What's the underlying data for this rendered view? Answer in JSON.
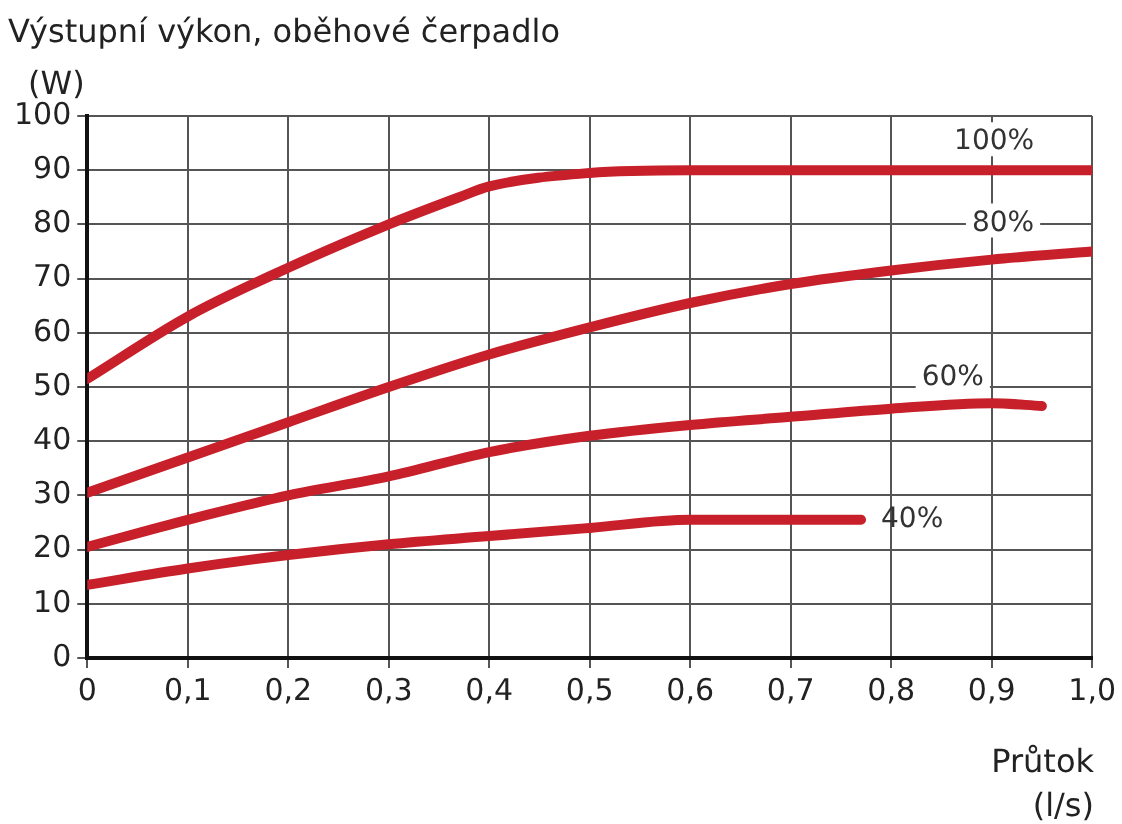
{
  "chart_data": {
    "type": "line",
    "title": "Výstupní výkon, oběhové čerpadlo",
    "ylabel": "(W)",
    "xlabel": "Průtok (l/s)",
    "xlim": [
      0,
      1
    ],
    "ylim": [
      0,
      100
    ],
    "xticks": [
      0,
      {
        "value": 0.1,
        "label": "0,1"
      },
      {
        "value": 0.2,
        "label": "0,2"
      },
      {
        "value": 0.3,
        "label": "0,3"
      },
      {
        "value": 0.4,
        "label": "0,4"
      },
      {
        "value": 0.5,
        "label": "0,5"
      },
      {
        "value": 0.6,
        "label": "0,6"
      },
      {
        "value": 0.7,
        "label": "0,7"
      },
      {
        "value": 0.8,
        "label": "0,8"
      },
      {
        "value": 0.9,
        "label": "0,9"
      },
      {
        "value": 1,
        "label": "1,0"
      }
    ],
    "yticks": [
      0,
      10,
      20,
      30,
      40,
      50,
      60,
      70,
      80,
      90,
      100
    ],
    "grid": true,
    "legend": false,
    "marker": "none",
    "line_style": "solid",
    "series": [
      {
        "name": "100%",
        "color": "#c8202a",
        "x": [
          0,
          0.1,
          0.2,
          0.3,
          0.37,
          0.4,
          0.5,
          0.6,
          0.8,
          1
        ],
        "values": [
          51.5,
          63,
          72,
          80,
          85,
          87,
          89.5,
          90,
          90,
          90
        ]
      },
      {
        "name": "80%",
        "color": "#c8202a",
        "x": [
          0,
          0.1,
          0.2,
          0.3,
          0.4,
          0.5,
          0.6,
          0.7,
          0.8,
          0.9,
          1
        ],
        "values": [
          30.5,
          37,
          43.5,
          50,
          56,
          61,
          65.5,
          69,
          71.5,
          73.5,
          75
        ]
      },
      {
        "name": "60%",
        "color": "#c8202a",
        "x": [
          0,
          0.1,
          0.2,
          0.3,
          0.4,
          0.5,
          0.6,
          0.7,
          0.8,
          0.9,
          0.95
        ],
        "values": [
          20.5,
          25.5,
          30,
          33.5,
          38,
          41,
          43,
          44.5,
          46,
          47,
          46.5
        ]
      },
      {
        "name": "40%",
        "color": "#c8202a",
        "x": [
          0,
          0.1,
          0.2,
          0.3,
          0.4,
          0.5,
          0.6,
          0.7,
          0.77
        ],
        "values": [
          13.5,
          16.5,
          19,
          21,
          22.5,
          24,
          25.5,
          25.5,
          25.5
        ]
      }
    ]
  }
}
